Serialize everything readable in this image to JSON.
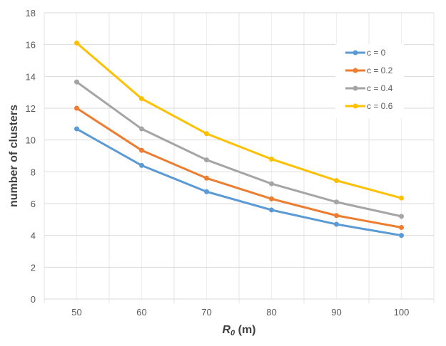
{
  "chart_data": {
    "type": "line",
    "title": "",
    "xlabel": "R0 (m)",
    "xlabel_main": "R",
    "xlabel_sub": "0",
    "xlabel_unit": " (m)",
    "ylabel": "number of clusters",
    "categories": [
      "50",
      "60",
      "70",
      "80",
      "90",
      "100"
    ],
    "ylim": [
      0,
      18
    ],
    "yticks": [
      0,
      2,
      4,
      6,
      8,
      10,
      12,
      14,
      16,
      18
    ],
    "grid": true,
    "legend_position": "top-right",
    "series": [
      {
        "name": "c = 0",
        "color": "#5B9BD5",
        "values": [
          10.7,
          8.4,
          6.75,
          5.6,
          4.7,
          4.0
        ]
      },
      {
        "name": "c = 0.2",
        "color": "#ED7D31",
        "values": [
          12.0,
          9.35,
          7.6,
          6.3,
          5.25,
          4.5
        ]
      },
      {
        "name": "c = 0.4",
        "color": "#A5A5A5",
        "values": [
          13.65,
          10.7,
          8.75,
          7.25,
          6.1,
          5.2
        ]
      },
      {
        "name": "c = 0.6",
        "color": "#FFC000",
        "values": [
          16.1,
          12.6,
          10.4,
          8.8,
          7.45,
          6.35
        ]
      }
    ]
  }
}
